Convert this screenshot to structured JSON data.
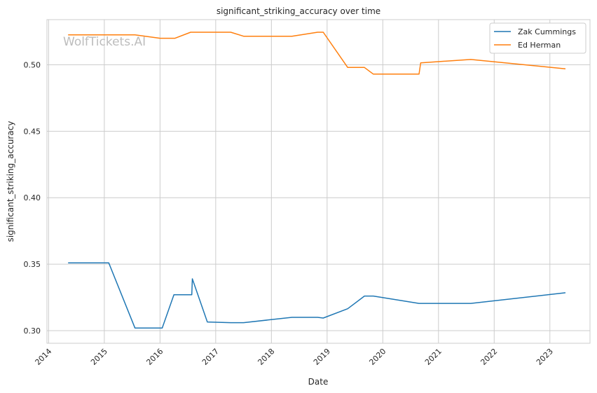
{
  "chart_data": {
    "type": "line",
    "title": "significant_striking_accuracy over time",
    "xlabel": "Date",
    "ylabel": "significant_striking_accuracy",
    "watermark": "WolfTickets.AI",
    "x_ticks": [
      "2014",
      "2015",
      "2016",
      "2017",
      "2018",
      "2019",
      "2020",
      "2021",
      "2022",
      "2023"
    ],
    "y_ticks": [
      "0.30",
      "0.35",
      "0.40",
      "0.45",
      "0.50"
    ],
    "xlim": [
      2013.97,
      2023.72
    ],
    "ylim": [
      0.2905,
      0.534
    ],
    "grid": true,
    "legend_position": "top-right",
    "series": [
      {
        "name": "Zak Cummings",
        "color": "#1f77b4",
        "x": [
          2014.35,
          2015.08,
          2015.55,
          2016.04,
          2016.25,
          2016.57,
          2016.58,
          2016.85,
          2017.27,
          2017.5,
          2018.37,
          2018.83,
          2018.93,
          2019.37,
          2019.67,
          2019.83,
          2020.65,
          2021.58,
          2023.28
        ],
        "y": [
          0.351,
          0.351,
          0.302,
          0.302,
          0.327,
          0.327,
          0.339,
          0.3065,
          0.306,
          0.306,
          0.31,
          0.31,
          0.3095,
          0.3165,
          0.326,
          0.326,
          0.3205,
          0.3205,
          0.3285
        ]
      },
      {
        "name": "Ed Herman",
        "color": "#ff7f0e",
        "x": [
          2014.35,
          2015.55,
          2016.0,
          2016.27,
          2016.55,
          2017.27,
          2017.5,
          2018.37,
          2018.83,
          2018.93,
          2019.37,
          2019.67,
          2019.83,
          2020.65,
          2020.68,
          2021.58,
          2023.28
        ],
        "y": [
          0.5225,
          0.5225,
          0.52,
          0.52,
          0.5245,
          0.5245,
          0.5215,
          0.5215,
          0.5245,
          0.5245,
          0.498,
          0.498,
          0.493,
          0.493,
          0.5015,
          0.504,
          0.497
        ]
      }
    ]
  }
}
